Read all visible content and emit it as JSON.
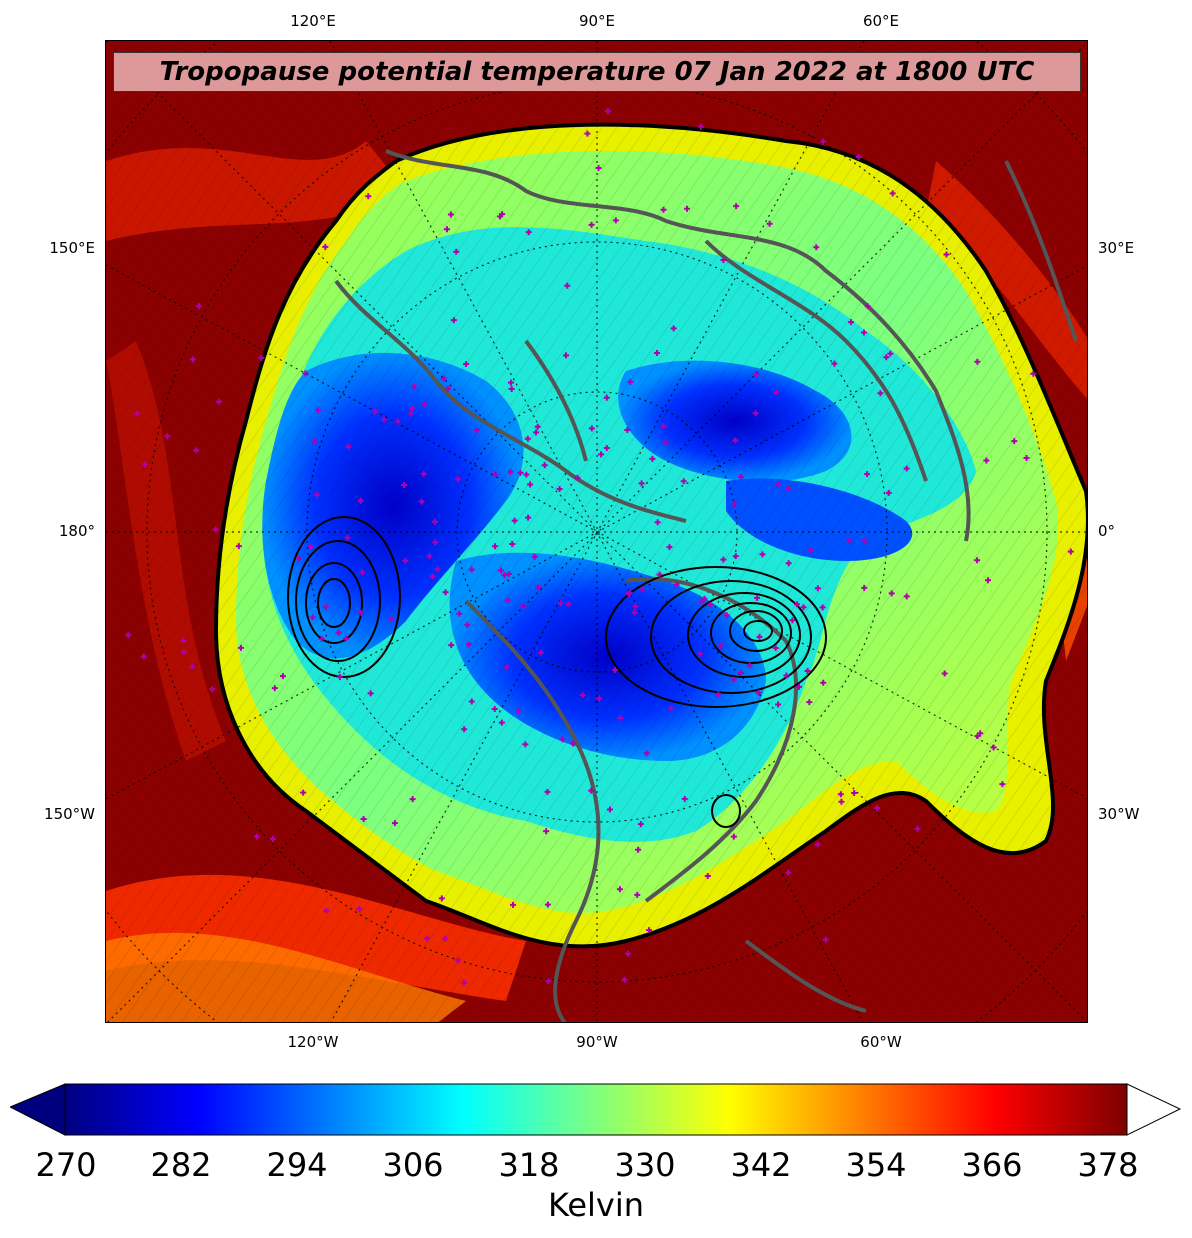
{
  "title": "Tropopause potential temperature 07 Jan 2022 at 1800 UTC",
  "longitude_labels": {
    "top": [
      "120°E",
      "90°E",
      "60°E"
    ],
    "bottom": [
      "120°W",
      "90°W",
      "60°W"
    ],
    "left": [
      "150°E",
      "180°",
      "150°W"
    ],
    "right": [
      "30°E",
      "0°",
      "30°W"
    ]
  },
  "colorbar": {
    "ticks": [
      "270",
      "282",
      "294",
      "306",
      "318",
      "330",
      "342",
      "354",
      "366",
      "378"
    ],
    "label": "Kelvin",
    "range": [
      270,
      378
    ],
    "colormap": "jet",
    "colors": [
      "#00007f",
      "#0000ff",
      "#007fff",
      "#00ffff",
      "#7fff7f",
      "#ffff00",
      "#ff7f00",
      "#ff0000",
      "#7f0000"
    ]
  },
  "map": {
    "projection": "north-polar-stereographic",
    "station_marker_color": "#b000b0",
    "coastline_color": "#555555",
    "contour_color": "#000000"
  }
}
